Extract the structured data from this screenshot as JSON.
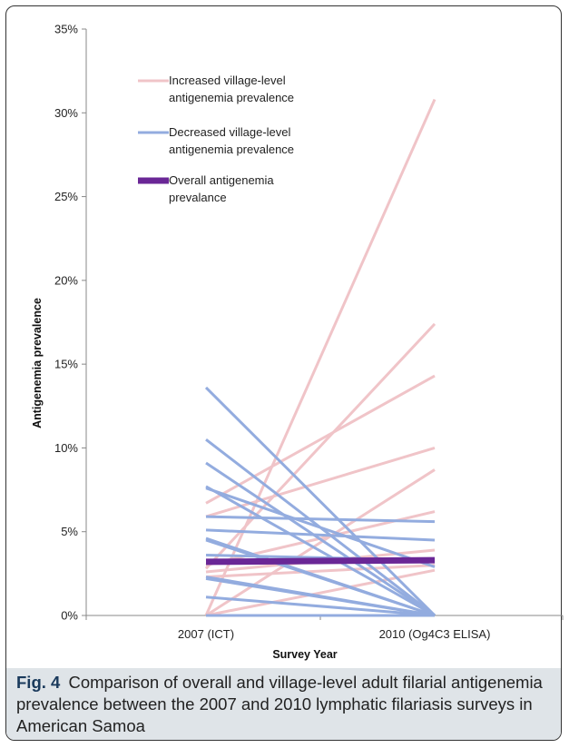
{
  "chart_data": {
    "type": "line",
    "title": "",
    "xlabel": "Survey Year",
    "ylabel": "Antigenemia prevalence",
    "categories": [
      "2007 (ICT)",
      "2010 (Og4C3 ELISA)"
    ],
    "ylim": [
      0,
      35
    ],
    "yticks": [
      "0%",
      "5%",
      "10%",
      "15%",
      "20%",
      "25%",
      "30%",
      "35%"
    ],
    "grid": false,
    "legend_position": "top-left",
    "legend": [
      {
        "label_lines": [
          "Increased village-level",
          "antigenemia prevalence"
        ],
        "color": "#f0c4c8"
      },
      {
        "label_lines": [
          "Decreased village-level",
          "antigenemia prevalence"
        ],
        "color": "#93acdf"
      },
      {
        "label_lines": [
          "Overall antigenemia",
          "prevalance"
        ],
        "color": "#6a2796"
      }
    ],
    "series": [
      {
        "group": "increased",
        "values": [
          0,
          30.8
        ]
      },
      {
        "group": "increased",
        "values": [
          2.8,
          17.4
        ]
      },
      {
        "group": "increased",
        "values": [
          6.7,
          14.3
        ]
      },
      {
        "group": "increased",
        "values": [
          5.9,
          10.0
        ]
      },
      {
        "group": "increased",
        "values": [
          0,
          8.7
        ]
      },
      {
        "group": "increased",
        "values": [
          3.0,
          6.2
        ]
      },
      {
        "group": "increased",
        "values": [
          2.6,
          3.9
        ]
      },
      {
        "group": "increased",
        "values": [
          2.3,
          3.0
        ]
      },
      {
        "group": "increased",
        "values": [
          0,
          2.7
        ]
      },
      {
        "group": "decreased",
        "values": [
          13.6,
          0
        ]
      },
      {
        "group": "decreased",
        "values": [
          10.5,
          0
        ]
      },
      {
        "group": "decreased",
        "values": [
          9.1,
          0
        ]
      },
      {
        "group": "decreased",
        "values": [
          7.7,
          0
        ]
      },
      {
        "group": "decreased",
        "values": [
          7.6,
          2.9
        ]
      },
      {
        "group": "decreased",
        "values": [
          5.9,
          5.6
        ]
      },
      {
        "group": "decreased",
        "values": [
          5.1,
          4.5
        ]
      },
      {
        "group": "decreased",
        "values": [
          4.6,
          0
        ]
      },
      {
        "group": "decreased",
        "values": [
          4.5,
          0
        ]
      },
      {
        "group": "decreased",
        "values": [
          3.6,
          3.3
        ]
      },
      {
        "group": "decreased",
        "values": [
          2.3,
          0
        ]
      },
      {
        "group": "decreased",
        "values": [
          2.2,
          0
        ]
      },
      {
        "group": "decreased",
        "values": [
          1.1,
          0
        ]
      },
      {
        "group": "decreased",
        "values": [
          0,
          0
        ]
      },
      {
        "group": "overall",
        "values": [
          3.2,
          3.3
        ]
      }
    ]
  },
  "caption": {
    "label": "Fig. 4",
    "text": "Comparison of overall and village-level adult filarial antigenemia prevalence between the 2007 and 2010 lymphatic filariasis surveys in American Samoa"
  }
}
